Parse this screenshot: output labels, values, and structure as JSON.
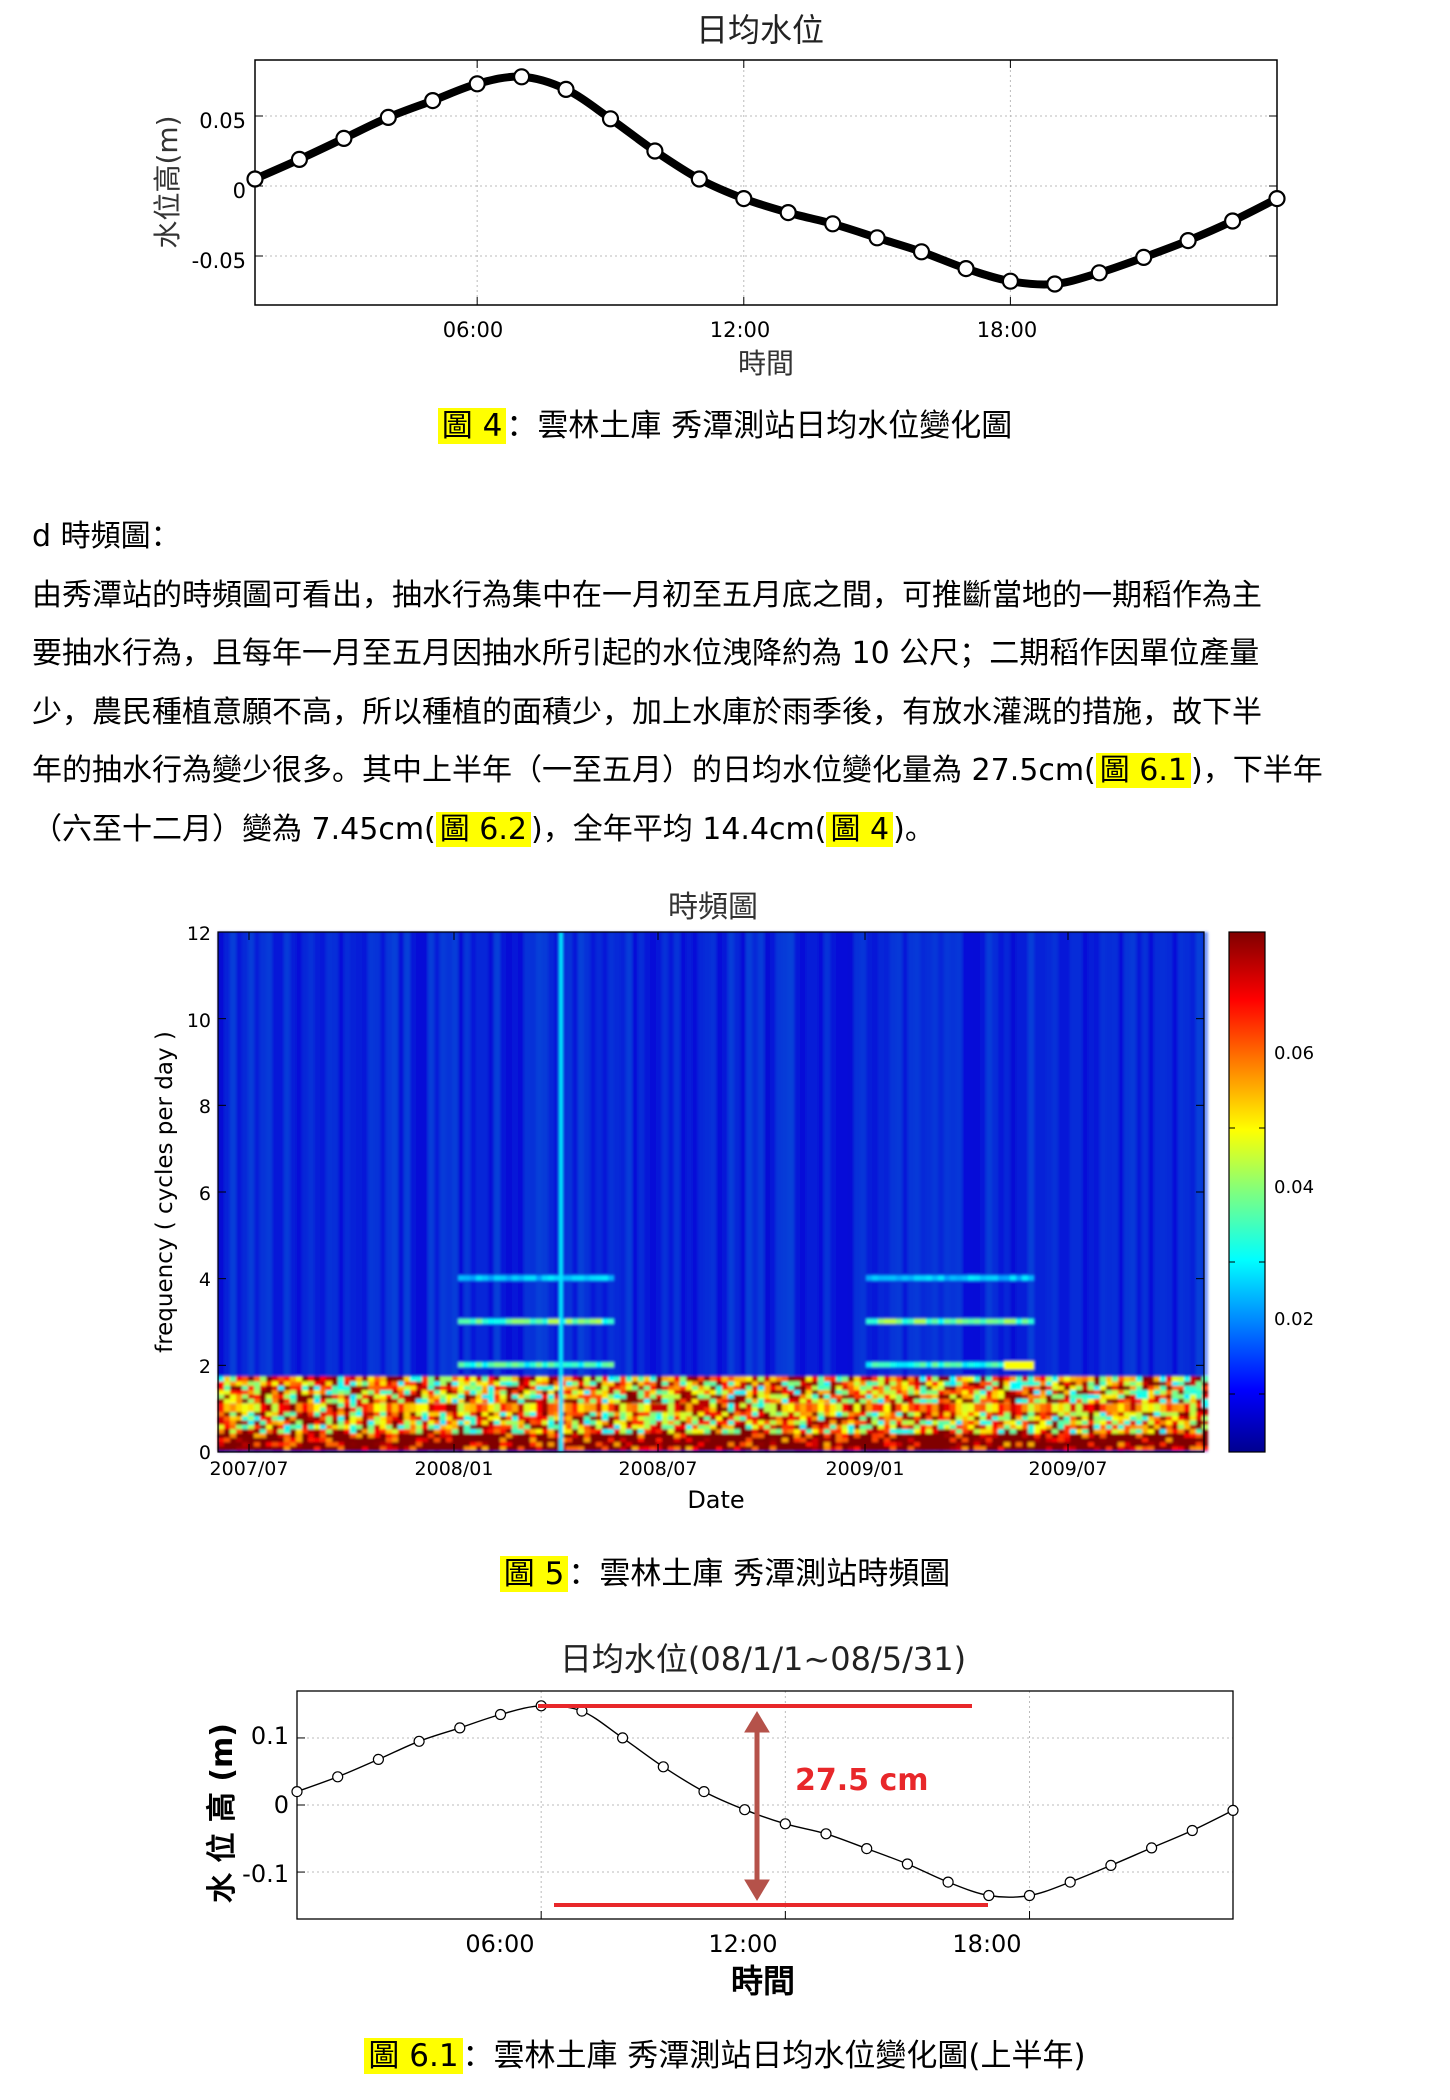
{
  "figure4": {
    "chart_data": {
      "type": "line",
      "title": "日均水位",
      "xlabel": "時間",
      "ylabel": "水位高(m)",
      "xticks": [
        "06:00",
        "12:00",
        "18:00"
      ],
      "yticks": [
        "0.05",
        "0",
        "-0.05"
      ],
      "xlim_hours": [
        1,
        24
      ],
      "ylim": [
        -0.085,
        0.09
      ],
      "grid": true,
      "series": [
        {
          "x_hours": [
            1,
            2,
            3,
            4,
            5,
            6,
            7,
            8,
            9,
            10,
            11,
            12,
            13,
            14,
            15,
            16,
            17,
            18,
            19,
            20,
            21,
            22,
            23,
            24
          ],
          "values": [
            0.005,
            0.019,
            0.034,
            0.049,
            0.061,
            0.073,
            0.078,
            0.069,
            0.048,
            0.025,
            0.005,
            -0.009,
            -0.019,
            -0.027,
            -0.037,
            -0.047,
            -0.059,
            -0.068,
            -0.07,
            -0.062,
            -0.051,
            -0.039,
            -0.025,
            -0.009
          ]
        }
      ]
    },
    "caption_label": "圖 4",
    "caption_text": "：雲林土庫  秀潭測站日均水位變化圖"
  },
  "section_d": {
    "heading": "d 時頻圖：",
    "line1": "由秀潭站的時頻圖可看出，抽水行為集中在一月初至五月底之間，可推斷當地的一期稻作為主",
    "line2": "要抽水行為，且每年一月至五月因抽水所引起的水位洩降約為 10 公尺；二期稻作因單位產量",
    "line3": "少，農民種植意願不高，所以種植的面積少，加上水庫於雨季後，有放水灌溉的措施，故下半",
    "line4_a": "年的抽水行為變少很多。其中上半年（一至五月）的日均水位變化量為 27.5cm(",
    "line4_ref": "圖 6.1",
    "line4_b": ")，下半年",
    "line5_a": "（六至十二月）變為 7.45cm(",
    "line5_ref1": "圖 6.2",
    "line5_b": ")，全年平均 14.4cm(",
    "line5_ref2": "圖 4",
    "line5_c": ")。"
  },
  "figure5": {
    "chart_data": {
      "type": "heatmap",
      "title": "時頻圖",
      "xlabel": "Date",
      "ylabel": "frequency ( cycles per day )",
      "xticks": [
        "2007/07",
        "2008/01",
        "2008/07",
        "2009/01",
        "2009/07"
      ],
      "yticks": [
        "0",
        "2",
        "4",
        "6",
        "8",
        "10",
        "12"
      ],
      "ylim": [
        0,
        12
      ],
      "colorbar_ticks": [
        "0.02",
        "0.04",
        "0.06"
      ],
      "colorbar_range": [
        0,
        0.08
      ],
      "colormap": "jet",
      "dominant_bands_cpd": [
        1,
        2,
        3,
        4
      ]
    },
    "caption_label": "圖 5",
    "caption_text": "：雲林土庫  秀潭測站時頻圖"
  },
  "figure61": {
    "chart_data": {
      "type": "line",
      "title": "日均水位(08/1/1~08/5/31)",
      "xlabel": "時間",
      "ylabel": "水 位 高 (m)",
      "xticks": [
        "06:00",
        "12:00",
        "18:00"
      ],
      "yticks": [
        "0.1",
        "0",
        "-0.1"
      ],
      "xlim_hours": [
        0,
        23
      ],
      "ylim": [
        -0.17,
        0.17
      ],
      "grid": true,
      "annotation": "27.5 cm",
      "series": [
        {
          "x_hours": [
            0,
            1,
            2,
            3,
            4,
            5,
            6,
            7,
            8,
            9,
            10,
            11,
            12,
            13,
            14,
            15,
            16,
            17,
            18,
            19,
            20,
            21,
            22,
            23
          ],
          "values": [
            0.02,
            0.042,
            0.068,
            0.095,
            0.115,
            0.135,
            0.148,
            0.14,
            0.1,
            0.057,
            0.02,
            -0.007,
            -0.028,
            -0.043,
            -0.065,
            -0.088,
            -0.115,
            -0.135,
            -0.135,
            -0.115,
            -0.09,
            -0.064,
            -0.038,
            -0.008
          ]
        }
      ]
    },
    "caption_label": "圖 6.1",
    "caption_text": "：雲林土庫  秀潭測站日均水位變化圖(上半年)"
  },
  "colors": {
    "highlight": "#ffff00",
    "annotation_red": "#e8272a",
    "annotation_arrow": "#b5524a",
    "axis_label_gray": "#333333"
  }
}
